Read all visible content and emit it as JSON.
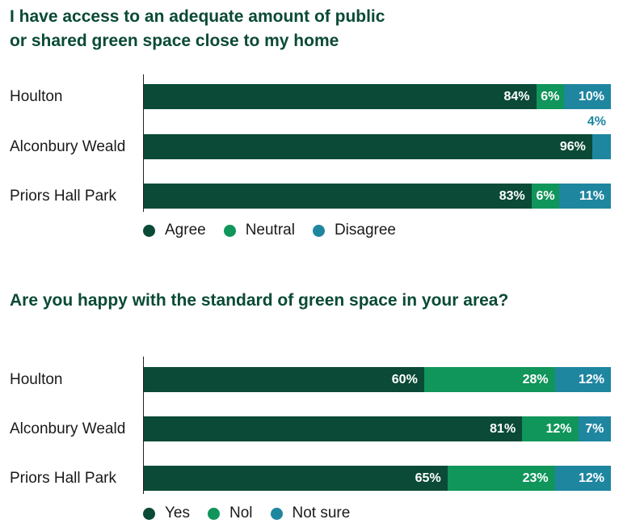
{
  "colors": {
    "dark": "#0a4a36",
    "green": "#10955a",
    "teal": "#1f86a0",
    "title": "#0a4a36"
  },
  "chart_data": [
    {
      "type": "bar",
      "orientation": "horizontal",
      "stacked": true,
      "title": "I have access to an adequate amount of public or shared green space close to my home",
      "title_lines": [
        "I have access to an adequate amount of public",
        "or shared green space close to my home"
      ],
      "categories": [
        "Houlton",
        "Alconbury Weald",
        "Priors Hall Park"
      ],
      "series": [
        {
          "name": "Agree",
          "values": [
            84,
            96,
            83
          ],
          "labels": [
            "84%",
            "96%",
            "83%"
          ]
        },
        {
          "name": "Neutral",
          "values": [
            6,
            0,
            6
          ],
          "labels": [
            "6%",
            "",
            "6%"
          ]
        },
        {
          "name": "Disagree",
          "values": [
            10,
            4,
            11
          ],
          "labels": [
            "10%",
            "4%",
            "11%"
          ]
        }
      ],
      "xlim": [
        0,
        100
      ],
      "legend_position": "bottom-left",
      "grid": false
    },
    {
      "type": "bar",
      "orientation": "horizontal",
      "stacked": true,
      "title": "Are you happy with the standard of green space in your area?",
      "title_lines": [
        "Are you happy with the standard of green space in your area?"
      ],
      "categories": [
        "Houlton",
        "Alconbury Weald",
        "Priors Hall Park"
      ],
      "series": [
        {
          "name": "Yes",
          "values": [
            60,
            81,
            65
          ],
          "labels": [
            "60%",
            "81%",
            "65%"
          ]
        },
        {
          "name": "Nol",
          "values": [
            28,
            12,
            23
          ],
          "labels": [
            "28%",
            "12%",
            "23%"
          ]
        },
        {
          "name": "Not sure",
          "values": [
            12,
            7,
            12
          ],
          "labels": [
            "12%",
            "7%",
            "12%"
          ]
        }
      ],
      "xlim": [
        0,
        100
      ],
      "legend_position": "bottom-left",
      "grid": false
    }
  ]
}
